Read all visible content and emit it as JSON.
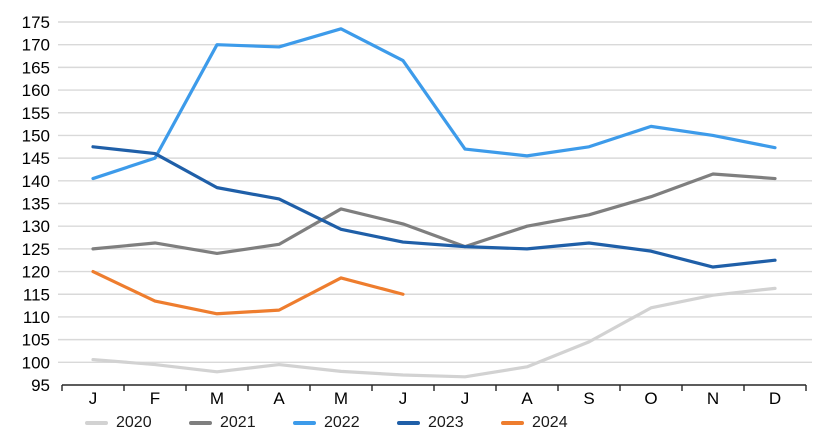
{
  "chart_data": {
    "type": "line",
    "title": "",
    "xlabel": "",
    "ylabel": "",
    "categories": [
      "J",
      "F",
      "M",
      "A",
      "M",
      "J",
      "J",
      "A",
      "S",
      "O",
      "N",
      "D"
    ],
    "y_ticks": [
      95,
      100,
      105,
      110,
      115,
      120,
      125,
      130,
      135,
      140,
      145,
      150,
      155,
      160,
      165,
      170,
      175
    ],
    "ylim": [
      95,
      175
    ],
    "grid": "horizontal",
    "grid_color": "#d9d9d9",
    "axis_color": "#262626",
    "label_color": "#000000",
    "legend_position": "bottom",
    "series": [
      {
        "name": "2020",
        "color": "#d2d2d2",
        "values": [
          100.6,
          99.5,
          97.9,
          99.5,
          98.0,
          97.2,
          96.8,
          99.0,
          104.5,
          112.0,
          114.8,
          116.3
        ]
      },
      {
        "name": "2021",
        "color": "#7f7f7f",
        "values": [
          125.0,
          126.3,
          124.0,
          126.0,
          133.8,
          130.5,
          125.5,
          130.0,
          132.5,
          136.5,
          141.5,
          140.5
        ]
      },
      {
        "name": "2022",
        "color": "#3d9bea",
        "values": [
          140.5,
          145.0,
          170.0,
          169.5,
          173.5,
          166.5,
          147.0,
          145.5,
          147.5,
          152.0,
          150.0,
          147.3
        ]
      },
      {
        "name": "2023",
        "color": "#1f5fa8",
        "values": [
          147.5,
          146.0,
          138.5,
          136.0,
          129.3,
          126.5,
          125.5,
          125.0,
          126.3,
          124.5,
          121.0,
          122.5
        ]
      },
      {
        "name": "2024",
        "color": "#ee7d2e",
        "values": [
          120.0,
          113.5,
          110.7,
          111.5,
          118.6,
          115.0
        ]
      }
    ]
  }
}
